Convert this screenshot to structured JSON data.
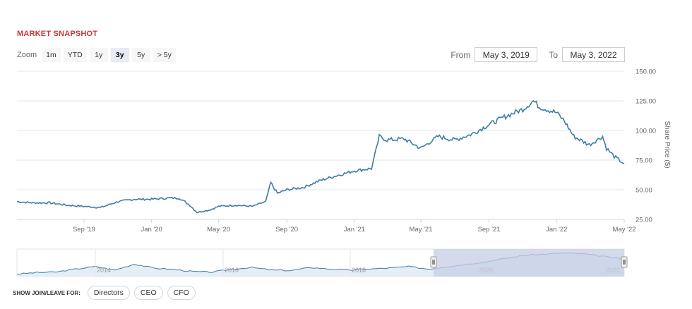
{
  "header": {
    "title": "MARKET SNAPSHOT"
  },
  "zoom": {
    "label": "Zoom",
    "buttons": [
      "1m",
      "YTD",
      "1y",
      "3y",
      "5y",
      "> 5y"
    ],
    "active": "3y"
  },
  "range": {
    "from_label": "From",
    "from_value": "May 3, 2019",
    "to_label": "To",
    "to_value": "May 3, 2022"
  },
  "footer": {
    "label": "SHOW JOIN/LEAVE FOR:",
    "buttons": [
      "Directors",
      "CEO",
      "CFO"
    ]
  },
  "colors": {
    "line": "#3d7ca6",
    "title": "#cc3333",
    "navigator_mask": "#c5cee4"
  },
  "chart_data": {
    "type": "line",
    "title": "",
    "xlabel": "",
    "ylabel": "Share Price ($)",
    "ylim": [
      25,
      150
    ],
    "yticks": [
      "25.00",
      "50.00",
      "75.00",
      "100.00",
      "125.00",
      "150.00"
    ],
    "xticks": [
      "Sep '19",
      "Jan '20",
      "May '20",
      "Sep '20",
      "Jan '21",
      "May '21",
      "Sep '21",
      "Jan '22",
      "May '22"
    ],
    "grid": true,
    "series": [
      {
        "x": [
          "2019-05-03",
          "2019-06-01",
          "2019-07-01",
          "2019-08-01",
          "2019-09-01",
          "2019-10-01",
          "2019-11-01",
          "2019-12-01",
          "2020-01-01",
          "2020-02-01",
          "2020-02-20",
          "2020-03-10",
          "2020-03-23",
          "2020-04-15",
          "2020-05-01",
          "2020-06-01",
          "2020-07-01",
          "2020-07-25",
          "2020-08-03",
          "2020-08-15",
          "2020-09-01",
          "2020-10-01",
          "2020-11-01",
          "2020-12-01",
          "2021-01-01",
          "2021-02-01",
          "2021-02-15",
          "2021-03-01",
          "2021-04-01",
          "2021-05-01",
          "2021-06-01",
          "2021-07-01",
          "2021-08-01",
          "2021-09-01",
          "2021-10-01",
          "2021-11-01",
          "2021-11-20",
          "2021-12-01",
          "2022-01-01",
          "2022-01-15",
          "2022-02-01",
          "2022-03-01",
          "2022-03-25",
          "2022-04-01",
          "2022-04-15",
          "2022-05-03"
        ],
        "values": [
          40,
          39,
          39,
          37,
          36,
          35,
          40,
          42,
          42,
          43,
          43,
          37,
          31,
          33,
          36,
          37,
          36,
          40,
          56,
          47,
          50,
          52,
          58,
          62,
          66,
          68,
          95,
          92,
          93,
          85,
          95,
          92,
          97,
          105,
          112,
          118,
          125,
          120,
          115,
          108,
          95,
          88,
          95,
          85,
          78,
          72
        ]
      }
    ],
    "navigator": {
      "xticks": [
        "2014",
        "2016",
        "2018",
        "2020",
        "2022"
      ],
      "values": [
        30,
        33,
        34,
        40,
        45,
        38,
        50,
        42,
        39,
        35,
        34,
        40,
        43,
        38,
        37,
        43,
        40,
        38,
        40,
        42,
        45,
        40,
        45,
        50,
        55,
        62,
        68,
        70,
        72,
        70,
        65,
        60
      ]
    }
  }
}
